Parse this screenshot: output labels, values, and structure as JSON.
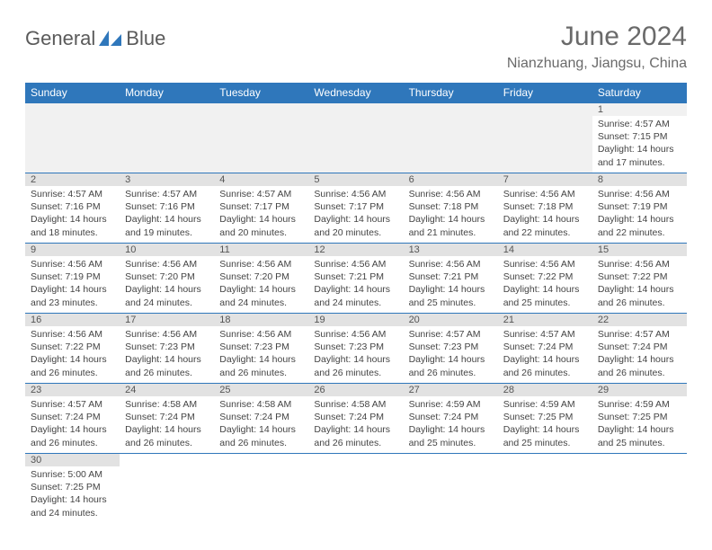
{
  "brand": {
    "name_a": "General",
    "name_b": "Blue"
  },
  "title": "June 2024",
  "location": "Nianzhuang, Jiangsu, China",
  "colors": {
    "header_bg": "#2f77bb",
    "daynum_bg": "#e2e2e2",
    "border": "#2f77bb"
  },
  "weekdays": [
    "Sunday",
    "Monday",
    "Tuesday",
    "Wednesday",
    "Thursday",
    "Friday",
    "Saturday"
  ],
  "weeks": [
    [
      null,
      null,
      null,
      null,
      null,
      null,
      {
        "n": "1",
        "sr": "Sunrise: 4:57 AM",
        "ss": "Sunset: 7:15 PM",
        "dl": "Daylight: 14 hours and 17 minutes."
      }
    ],
    [
      {
        "n": "2",
        "sr": "Sunrise: 4:57 AM",
        "ss": "Sunset: 7:16 PM",
        "dl": "Daylight: 14 hours and 18 minutes."
      },
      {
        "n": "3",
        "sr": "Sunrise: 4:57 AM",
        "ss": "Sunset: 7:16 PM",
        "dl": "Daylight: 14 hours and 19 minutes."
      },
      {
        "n": "4",
        "sr": "Sunrise: 4:57 AM",
        "ss": "Sunset: 7:17 PM",
        "dl": "Daylight: 14 hours and 20 minutes."
      },
      {
        "n": "5",
        "sr": "Sunrise: 4:56 AM",
        "ss": "Sunset: 7:17 PM",
        "dl": "Daylight: 14 hours and 20 minutes."
      },
      {
        "n": "6",
        "sr": "Sunrise: 4:56 AM",
        "ss": "Sunset: 7:18 PM",
        "dl": "Daylight: 14 hours and 21 minutes."
      },
      {
        "n": "7",
        "sr": "Sunrise: 4:56 AM",
        "ss": "Sunset: 7:18 PM",
        "dl": "Daylight: 14 hours and 22 minutes."
      },
      {
        "n": "8",
        "sr": "Sunrise: 4:56 AM",
        "ss": "Sunset: 7:19 PM",
        "dl": "Daylight: 14 hours and 22 minutes."
      }
    ],
    [
      {
        "n": "9",
        "sr": "Sunrise: 4:56 AM",
        "ss": "Sunset: 7:19 PM",
        "dl": "Daylight: 14 hours and 23 minutes."
      },
      {
        "n": "10",
        "sr": "Sunrise: 4:56 AM",
        "ss": "Sunset: 7:20 PM",
        "dl": "Daylight: 14 hours and 24 minutes."
      },
      {
        "n": "11",
        "sr": "Sunrise: 4:56 AM",
        "ss": "Sunset: 7:20 PM",
        "dl": "Daylight: 14 hours and 24 minutes."
      },
      {
        "n": "12",
        "sr": "Sunrise: 4:56 AM",
        "ss": "Sunset: 7:21 PM",
        "dl": "Daylight: 14 hours and 24 minutes."
      },
      {
        "n": "13",
        "sr": "Sunrise: 4:56 AM",
        "ss": "Sunset: 7:21 PM",
        "dl": "Daylight: 14 hours and 25 minutes."
      },
      {
        "n": "14",
        "sr": "Sunrise: 4:56 AM",
        "ss": "Sunset: 7:22 PM",
        "dl": "Daylight: 14 hours and 25 minutes."
      },
      {
        "n": "15",
        "sr": "Sunrise: 4:56 AM",
        "ss": "Sunset: 7:22 PM",
        "dl": "Daylight: 14 hours and 26 minutes."
      }
    ],
    [
      {
        "n": "16",
        "sr": "Sunrise: 4:56 AM",
        "ss": "Sunset: 7:22 PM",
        "dl": "Daylight: 14 hours and 26 minutes."
      },
      {
        "n": "17",
        "sr": "Sunrise: 4:56 AM",
        "ss": "Sunset: 7:23 PM",
        "dl": "Daylight: 14 hours and 26 minutes."
      },
      {
        "n": "18",
        "sr": "Sunrise: 4:56 AM",
        "ss": "Sunset: 7:23 PM",
        "dl": "Daylight: 14 hours and 26 minutes."
      },
      {
        "n": "19",
        "sr": "Sunrise: 4:56 AM",
        "ss": "Sunset: 7:23 PM",
        "dl": "Daylight: 14 hours and 26 minutes."
      },
      {
        "n": "20",
        "sr": "Sunrise: 4:57 AM",
        "ss": "Sunset: 7:23 PM",
        "dl": "Daylight: 14 hours and 26 minutes."
      },
      {
        "n": "21",
        "sr": "Sunrise: 4:57 AM",
        "ss": "Sunset: 7:24 PM",
        "dl": "Daylight: 14 hours and 26 minutes."
      },
      {
        "n": "22",
        "sr": "Sunrise: 4:57 AM",
        "ss": "Sunset: 7:24 PM",
        "dl": "Daylight: 14 hours and 26 minutes."
      }
    ],
    [
      {
        "n": "23",
        "sr": "Sunrise: 4:57 AM",
        "ss": "Sunset: 7:24 PM",
        "dl": "Daylight: 14 hours and 26 minutes."
      },
      {
        "n": "24",
        "sr": "Sunrise: 4:58 AM",
        "ss": "Sunset: 7:24 PM",
        "dl": "Daylight: 14 hours and 26 minutes."
      },
      {
        "n": "25",
        "sr": "Sunrise: 4:58 AM",
        "ss": "Sunset: 7:24 PM",
        "dl": "Daylight: 14 hours and 26 minutes."
      },
      {
        "n": "26",
        "sr": "Sunrise: 4:58 AM",
        "ss": "Sunset: 7:24 PM",
        "dl": "Daylight: 14 hours and 26 minutes."
      },
      {
        "n": "27",
        "sr": "Sunrise: 4:59 AM",
        "ss": "Sunset: 7:24 PM",
        "dl": "Daylight: 14 hours and 25 minutes."
      },
      {
        "n": "28",
        "sr": "Sunrise: 4:59 AM",
        "ss": "Sunset: 7:25 PM",
        "dl": "Daylight: 14 hours and 25 minutes."
      },
      {
        "n": "29",
        "sr": "Sunrise: 4:59 AM",
        "ss": "Sunset: 7:25 PM",
        "dl": "Daylight: 14 hours and 25 minutes."
      }
    ],
    [
      {
        "n": "30",
        "sr": "Sunrise: 5:00 AM",
        "ss": "Sunset: 7:25 PM",
        "dl": "Daylight: 14 hours and 24 minutes."
      },
      null,
      null,
      null,
      null,
      null,
      null
    ]
  ]
}
